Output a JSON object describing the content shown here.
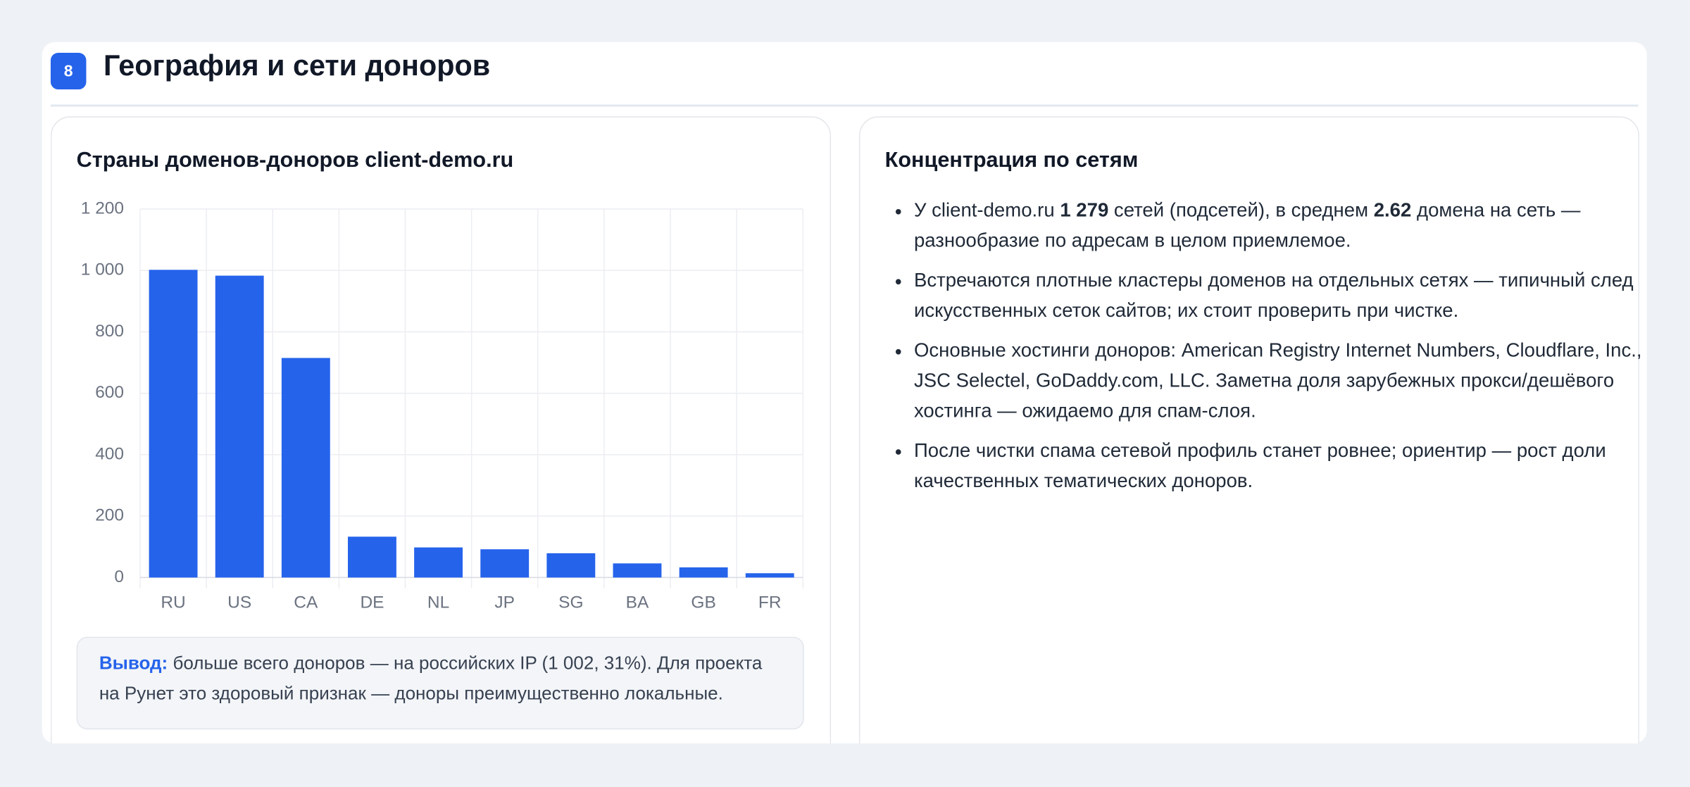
{
  "header": {
    "badge": "8",
    "title": "География и сети доноров"
  },
  "chart_data": {
    "type": "bar",
    "title": "Страны доменов-доноров client-demo.ru",
    "categories": [
      "RU",
      "US",
      "CA",
      "DE",
      "NL",
      "JP",
      "SG",
      "BA",
      "GB",
      "FR"
    ],
    "values": [
      1002,
      983,
      715,
      133,
      98,
      92,
      79,
      46,
      33,
      14
    ],
    "color": "#2563eb",
    "ylim": [
      0,
      1200
    ],
    "yticks": [
      0,
      200,
      400,
      600,
      800,
      {
        "value": 1000,
        "label": "1 000"
      },
      {
        "value": 1200,
        "label": "1 200"
      }
    ],
    "grid": true
  },
  "conclusion": {
    "label": "Вывод:",
    "text": " больше всего доноров — на российских IP (1 002, 31%). Для проекта на Рунет это здоровый признак — доноры преимущественно локальные."
  },
  "networks": {
    "title": "Концентрация по сетям",
    "bullets": [
      [
        "У client-demo.ru ",
        "1 279",
        " сетей (подсетей), в среднем ",
        "2.62",
        " домена на сеть — разнообразие по адресам в целом приемлемое."
      ],
      [
        "Встречаются плотные кластеры доменов на отдельных сетях — типичный след искусственных сеток сайтов; их стоит проверить при чистке."
      ],
      [
        "Основные хостинги доноров: American Registry Internet Numbers, Cloudflare, Inc., JSC Selectel, GoDaddy.com, LLC. Заметна доля зарубежных прокси/дешёвого хостинга — ожидаемо для спам-слоя."
      ],
      [
        "После чистки спама сетевой профиль станет ровнее; ориентир — рост доли качественных тематических доноров."
      ]
    ]
  }
}
